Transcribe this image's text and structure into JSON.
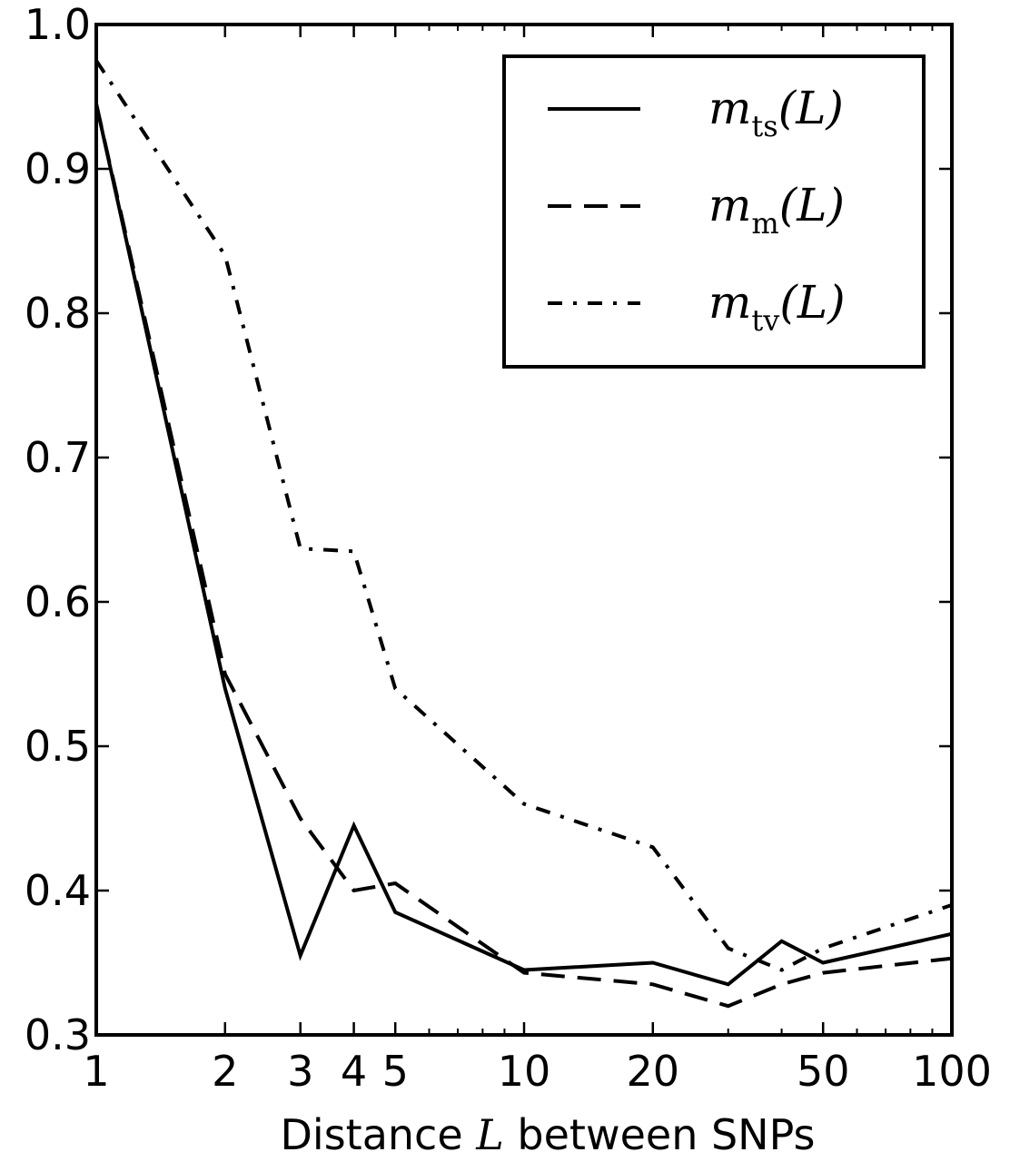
{
  "chart_data": {
    "type": "line",
    "xscale": "log",
    "xlim": [
      1,
      100
    ],
    "ylim": [
      0.3,
      1.0
    ],
    "xlabel": {
      "prefix": "Distance ",
      "symbol": "L",
      "suffix": " between SNPs"
    },
    "ylabel": "",
    "title": "",
    "xticks": [
      {
        "value": 1,
        "label": "1"
      },
      {
        "value": 2,
        "label": "2"
      },
      {
        "value": 3,
        "label": "3"
      },
      {
        "value": 4,
        "label": "4"
      },
      {
        "value": 5,
        "label": "5"
      },
      {
        "value": 10,
        "label": "10"
      },
      {
        "value": 20,
        "label": "20"
      },
      {
        "value": 50,
        "label": "50"
      },
      {
        "value": 100,
        "label": "100"
      }
    ],
    "xminor": [
      6,
      7,
      8,
      9,
      30,
      40,
      60,
      70,
      80,
      90
    ],
    "yticks": [
      {
        "value": 0.3,
        "label": "0.3"
      },
      {
        "value": 0.4,
        "label": "0.4"
      },
      {
        "value": 0.5,
        "label": "0.5"
      },
      {
        "value": 0.6,
        "label": "0.6"
      },
      {
        "value": 0.7,
        "label": "0.7"
      },
      {
        "value": 0.8,
        "label": "0.8"
      },
      {
        "value": 0.9,
        "label": "0.9"
      },
      {
        "value": 1.0,
        "label": "1.0"
      }
    ],
    "grid": false,
    "legend_position": "top-right",
    "series": [
      {
        "name": "m_ts(L)",
        "symbol": "m",
        "subscript": "ts",
        "arg": "(L)",
        "style": "solid",
        "x": [
          1,
          2,
          3,
          4,
          5,
          10,
          20,
          30,
          40,
          50,
          100
        ],
        "y": [
          0.945,
          0.54,
          0.355,
          0.445,
          0.385,
          0.345,
          0.35,
          0.335,
          0.365,
          0.35,
          0.37
        ]
      },
      {
        "name": "m_m(L)",
        "symbol": "m",
        "subscript": "m",
        "arg": "(L)",
        "style": "dashed",
        "x": [
          1,
          2,
          3,
          4,
          5,
          10,
          20,
          30,
          40,
          50,
          100
        ],
        "y": [
          0.945,
          0.55,
          0.45,
          0.4,
          0.405,
          0.343,
          0.335,
          0.32,
          0.335,
          0.343,
          0.353
        ]
      },
      {
        "name": "m_tv(L)",
        "symbol": "m",
        "subscript": "tv",
        "arg": "(L)",
        "style": "dashdot",
        "x": [
          1,
          2,
          3,
          4,
          5,
          10,
          20,
          30,
          40,
          50,
          100
        ],
        "y": [
          0.975,
          0.84,
          0.637,
          0.635,
          0.54,
          0.46,
          0.43,
          0.36,
          0.345,
          0.36,
          0.39
        ]
      }
    ]
  }
}
